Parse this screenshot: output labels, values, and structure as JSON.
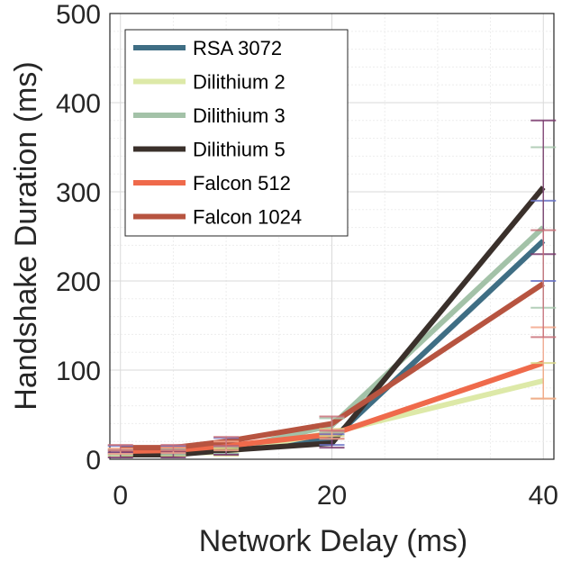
{
  "chart_data": {
    "type": "line",
    "xlabel": "Network Delay (ms)",
    "ylabel": "Handshake Duration (ms)",
    "xlim": [
      -1,
      41
    ],
    "ylim": [
      0,
      500
    ],
    "xticks": [
      0,
      20,
      40
    ],
    "yticks": [
      0,
      100,
      200,
      300,
      400,
      500
    ],
    "x_tick_labels": [
      "0",
      "20",
      "40"
    ],
    "y_tick_labels": [
      "0",
      "100",
      "200",
      "300",
      "400",
      "500"
    ],
    "grid": true,
    "legend_position": "top-left",
    "x": [
      0,
      5,
      10,
      20,
      40
    ],
    "series": [
      {
        "name": "RSA 3072",
        "color": "#3f6e84",
        "values": [
          11,
          11,
          15,
          22,
          245
        ],
        "error": [
          4,
          4,
          9,
          6,
          45
        ]
      },
      {
        "name": "Dilithium 2",
        "color": "#dde9a8",
        "values": [
          7,
          7,
          8,
          30,
          88
        ],
        "error": [
          3,
          3,
          4,
          4,
          20
        ]
      },
      {
        "name": "Dilithium 3",
        "color": "#a3c2a8",
        "values": [
          8,
          8,
          10,
          38,
          260
        ],
        "error": [
          3,
          3,
          4,
          8,
          90
        ]
      },
      {
        "name": "Dilithium 5",
        "color": "#3a302b",
        "values": [
          5,
          5,
          10,
          18,
          305
        ],
        "error": [
          3,
          3,
          5,
          5,
          75
        ]
      },
      {
        "name": "Falcon 512",
        "color": "#ef6a4b",
        "values": [
          9,
          10,
          15,
          28,
          108
        ],
        "error": [
          3,
          3,
          5,
          5,
          40
        ]
      },
      {
        "name": "Falcon 1024",
        "color": "#b75440",
        "values": [
          13,
          13,
          20,
          40,
          197
        ],
        "error": [
          3,
          3,
          5,
          8,
          60
        ]
      }
    ]
  }
}
